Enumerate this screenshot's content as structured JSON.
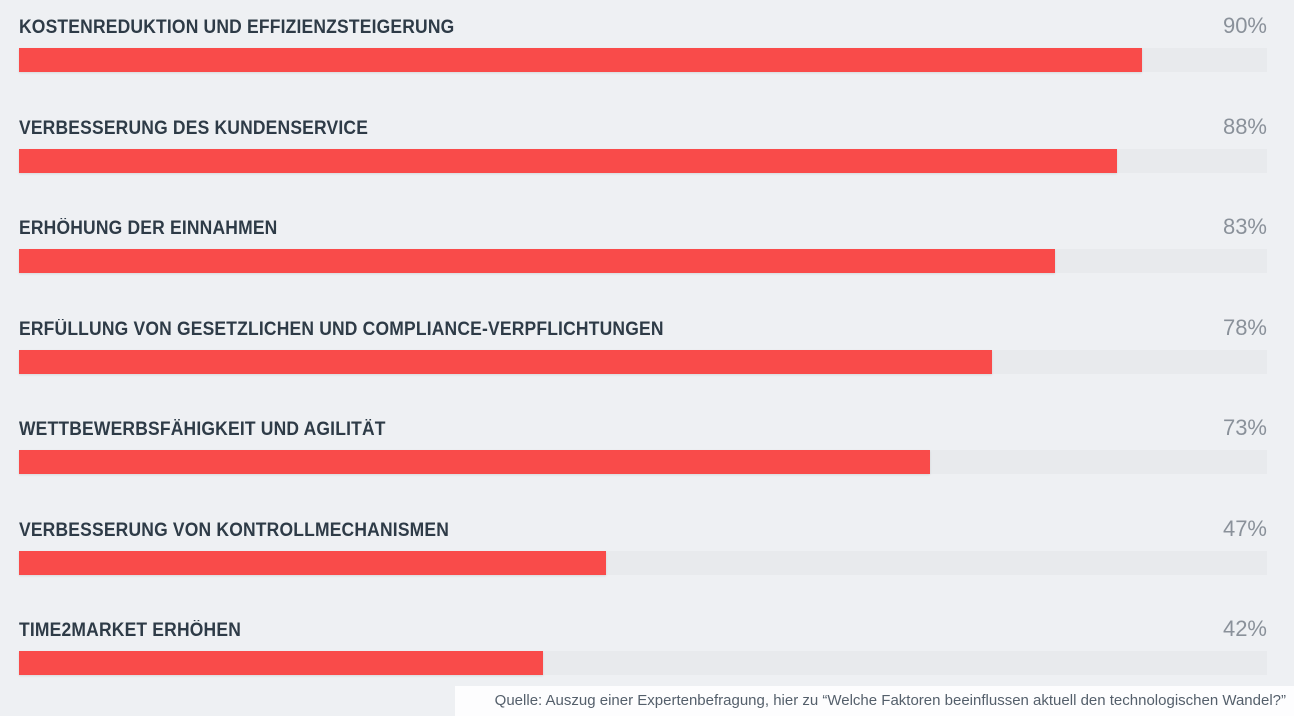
{
  "chart_data": {
    "type": "bar",
    "orientation": "horizontal",
    "title": "",
    "xlabel": "",
    "ylabel": "",
    "xlim": [
      0,
      100
    ],
    "unit": "%",
    "grid": false,
    "legend": false,
    "categories": [
      "KOSTENREDUKTION UND EFFIZIENZSTEIGERUNG",
      "VERBESSERUNG DES KUNDENSERVICE",
      "ERHÖHUNG DER EINNAHMEN",
      "ERFÜLLUNG VON GESETZLICHEN UND COMPLIANCE-VERPFLICHTUNGEN",
      "WETTBEWERBSFÄHIGKEIT UND AGILITÄT",
      "VERBESSERUNG VON KONTROLLMECHANISMEN",
      "TIME2MARKET ERHÖHEN"
    ],
    "values": [
      90,
      88,
      83,
      78,
      73,
      47,
      42
    ],
    "rows": [
      {
        "label": "KOSTENREDUKTION UND EFFIZIENZSTEIGERUNG",
        "value": 90,
        "value_label": "90%"
      },
      {
        "label": "VERBESSERUNG DES KUNDENSERVICE",
        "value": 88,
        "value_label": "88%"
      },
      {
        "label": "ERHÖHUNG DER EINNAHMEN",
        "value": 83,
        "value_label": "83%"
      },
      {
        "label": "ERFÜLLUNG VON GESETZLICHEN UND COMPLIANCE-VERPFLICHTUNGEN",
        "value": 78,
        "value_label": "78%"
      },
      {
        "label": "WETTBEWERBSFÄHIGKEIT UND AGILITÄT",
        "value": 73,
        "value_label": "73%"
      },
      {
        "label": "VERBESSERUNG VON KONTROLLMECHANISMEN",
        "value": 47,
        "value_label": "47%"
      },
      {
        "label": "TIME2MARKET ERHÖHEN",
        "value": 42,
        "value_label": "42%"
      }
    ],
    "colors": {
      "bar": "#f94b4a",
      "track": "#e8eaed",
      "background": "#eef0f3",
      "label_text": "#2e3b47",
      "value_text": "#8a919a"
    }
  },
  "footer": {
    "source": "Quelle: Auszug einer Expertenbefragung, hier zu “Welche Faktoren beeinflussen aktuell den technologischen Wandel?”"
  }
}
